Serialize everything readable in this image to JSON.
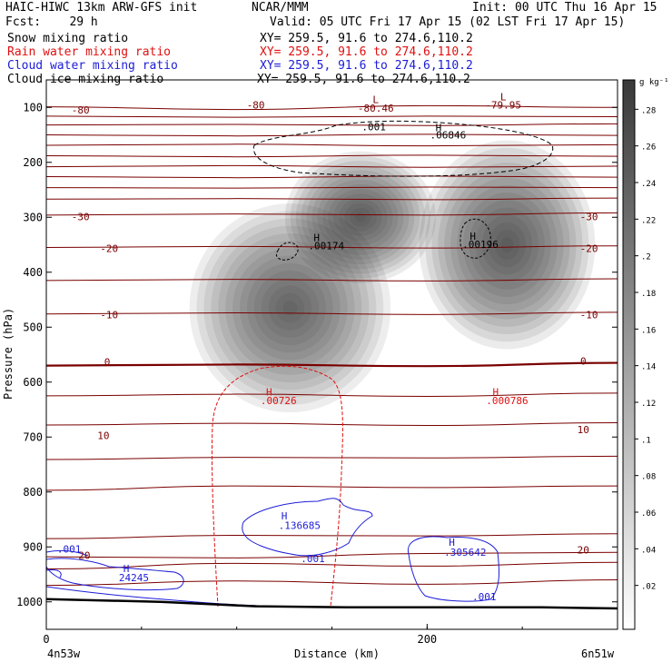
{
  "header": {
    "title_left": "HAIC-HIWC 13km ARW-GFS init",
    "org": "NCAR/MMM",
    "init": "Init: 00 UTC Thu 16 Apr 15",
    "fcst": "Fcst:    29 h",
    "valid": "Valid: 05 UTC Fri 17 Apr 15 (02 LST Fri 17 Apr 15)"
  },
  "fields": [
    {
      "label": "Snow mixing ratio",
      "xy": "XY= 259.5, 91.6 to 274.6,110.2",
      "color": "#000000"
    },
    {
      "label": "Rain water mixing ratio",
      "xy": "XY= 259.5, 91.6 to 274.6,110.2",
      "color": "#e01010"
    },
    {
      "label": "Cloud water mixing ratio",
      "xy": "XY= 259.5, 91.6 to 274.6,110.2",
      "color": "#1c1cd8"
    },
    {
      "label": "Cloud ice mixing ratio",
      "xy": "XY= 259.5, 91.6 to 274.6,110.2",
      "color": "#000000"
    }
  ],
  "chart_data": {
    "type": "heatmap",
    "xlabel": "Distance (km)",
    "ylabel": "Pressure (hPa)",
    "xlim": [
      0,
      300
    ],
    "ylim": [
      1050,
      50
    ],
    "x_ticks": [
      0,
      200
    ],
    "y_ticks": [
      100,
      200,
      300,
      400,
      500,
      600,
      700,
      800,
      900,
      1000
    ],
    "left_endpoint": "4n53w",
    "right_endpoint": "6n51w",
    "colorbar": {
      "unit": "g kg⁻¹",
      "ticks": [
        ".28",
        ".26",
        ".24",
        ".22",
        ".2",
        ".18",
        ".16",
        ".14",
        ".12",
        ".1",
        ".08",
        ".06",
        ".04",
        ".02"
      ]
    },
    "snow_blobs": [
      {
        "x": 128,
        "p": 465,
        "sx": 24,
        "sp": 95,
        "peak": 0.26
      },
      {
        "x": 165,
        "p": 300,
        "sx": 18,
        "sp": 60,
        "peak": 0.28
      },
      {
        "x": 242,
        "p": 350,
        "sx": 21,
        "sp": 95,
        "peak": 0.28
      }
    ],
    "temperature_contours": {
      "color": "#7a0000",
      "labels": [
        "-80",
        "-30",
        "-20",
        "-10",
        "0",
        "10",
        "20"
      ],
      "series": [
        {
          "x": [
            0,
            100,
            200,
            300
          ],
          "p": [
            99,
            104,
            97,
            100
          ]
        },
        {
          "x": [
            0,
            100,
            200,
            300
          ],
          "p": [
            116,
            118,
            116,
            117
          ]
        },
        {
          "x": [
            0,
            100,
            200,
            300
          ],
          "p": [
            132,
            131,
            133,
            130
          ]
        },
        {
          "x": [
            0,
            100,
            200,
            300
          ],
          "p": [
            150,
            152,
            149,
            151
          ]
        },
        {
          "x": [
            0,
            100,
            200,
            300
          ],
          "p": [
            169,
            167,
            170,
            168
          ]
        },
        {
          "x": [
            0,
            100,
            200,
            300
          ],
          "p": [
            188,
            190,
            187,
            189
          ]
        },
        {
          "x": [
            0,
            100,
            200,
            300
          ],
          "p": [
            208,
            206,
            209,
            207
          ]
        },
        {
          "x": [
            0,
            100,
            200,
            300
          ],
          "p": [
            226,
            228,
            225,
            227
          ]
        },
        {
          "x": [
            0,
            100,
            200,
            300
          ],
          "p": [
            246,
            247,
            245,
            246
          ]
        },
        {
          "x": [
            0,
            100,
            200,
            300
          ],
          "p": [
            267,
            266,
            268,
            265
          ]
        },
        {
          "x": [
            0,
            100,
            200,
            300
          ],
          "p": [
            296,
            294,
            296,
            292
          ]
        },
        {
          "x": [
            0,
            100,
            200,
            300
          ],
          "p": [
            355,
            353,
            356,
            352
          ]
        },
        {
          "x": [
            0,
            100,
            200,
            300
          ],
          "p": [
            415,
            413,
            416,
            412
          ]
        },
        {
          "x": [
            0,
            100,
            200,
            300
          ],
          "p": [
            476,
            474,
            477,
            473
          ]
        },
        {
          "x": [
            0,
            100,
            200,
            300
          ],
          "p": [
            570,
            568,
            571,
            565
          ]
        },
        {
          "x": [
            0,
            100,
            200,
            300
          ],
          "p": [
            625,
            622,
            626,
            620
          ]
        },
        {
          "x": [
            0,
            100,
            200,
            300
          ],
          "p": [
            678,
            675,
            679,
            674
          ]
        },
        {
          "x": [
            0,
            100,
            200,
            300
          ],
          "p": [
            741,
            737,
            738,
            735
          ]
        },
        {
          "x": [
            0,
            100,
            200,
            300
          ],
          "p": [
            797,
            789,
            792,
            789
          ]
        },
        {
          "x": [
            0,
            100,
            200,
            300
          ],
          "p": [
            885,
            879,
            880,
            876
          ]
        },
        {
          "x": [
            0,
            100,
            200,
            300
          ],
          "p": [
            918,
            920,
            912,
            910
          ]
        },
        {
          "x": [
            0,
            100,
            200,
            300
          ],
          "p": [
            940,
            930,
            935,
            928
          ]
        },
        {
          "x": [
            0,
            100,
            200,
            300
          ],
          "p": [
            970,
            962,
            968,
            960
          ]
        }
      ]
    },
    "ground": {
      "x": [
        0,
        60,
        110,
        160,
        210,
        260,
        300
      ],
      "p": [
        995,
        1000,
        1008,
        1010,
        1010,
        1010,
        1012
      ]
    },
    "annotations": [
      {
        "text": "L",
        "x": 173,
        "p": 92,
        "color": "#7a0000"
      },
      {
        "text": "-80.46",
        "x": 173,
        "p": 108,
        "color": "#7a0000"
      },
      {
        "text": "L",
        "x": 240,
        "p": 87,
        "color": "#7a0000"
      },
      {
        "text": "-79.95",
        "x": 240,
        "p": 102,
        "color": "#7a0000"
      },
      {
        "text": ".001",
        "x": 172,
        "p": 142,
        "color": "#000000"
      },
      {
        "text": "H",
        "x": 206,
        "p": 143,
        "color": "#000000"
      },
      {
        "text": ".06846",
        "x": 211,
        "p": 157,
        "color": "#000000"
      },
      {
        "text": "H",
        "x": 142,
        "p": 343,
        "color": "#000000"
      },
      {
        "text": ".00174",
        "x": 147,
        "p": 358,
        "color": "#000000"
      },
      {
        "text": "H",
        "x": 224,
        "p": 341,
        "color": "#000000"
      },
      {
        "text": ".00196",
        "x": 228,
        "p": 356,
        "color": "#000000"
      },
      {
        "text": "H",
        "x": 117,
        "p": 624,
        "color": "#e01010"
      },
      {
        "text": ".00726",
        "x": 122,
        "p": 640,
        "color": "#e01010"
      },
      {
        "text": "H",
        "x": 236,
        "p": 624,
        "color": "#e01010"
      },
      {
        "text": ".000786",
        "x": 242,
        "p": 640,
        "color": "#e01010"
      },
      {
        "text": "H",
        "x": 125,
        "p": 850,
        "color": "#1c1cd8"
      },
      {
        "text": ".136685",
        "x": 133,
        "p": 867,
        "color": "#1c1cd8"
      },
      {
        "text": ".001",
        "x": 140,
        "p": 928,
        "color": "#1c1cd8"
      },
      {
        "text": "H",
        "x": 213,
        "p": 898,
        "color": "#1c1cd8"
      },
      {
        "text": ".305642",
        "x": 220,
        "p": 916,
        "color": "#1c1cd8"
      },
      {
        "text": ".001",
        "x": 230,
        "p": 997,
        "color": "#1c1cd8"
      },
      {
        "text": ".001",
        "x": 12,
        "p": 910,
        "color": "#1c1cd8"
      },
      {
        "text": "H",
        "x": 42,
        "p": 946,
        "color": "#1c1cd8"
      },
      {
        "text": "24245",
        "x": 46,
        "p": 962,
        "color": "#1c1cd8"
      },
      {
        "text": "-80",
        "x": 18,
        "p": 111,
        "color": "#7a0000"
      },
      {
        "text": "-80",
        "x": 110,
        "p": 102,
        "color": "#7a0000"
      },
      {
        "text": "-30",
        "x": 18,
        "p": 305,
        "color": "#7a0000"
      },
      {
        "text": "-30",
        "x": 285,
        "p": 305,
        "color": "#7a0000"
      },
      {
        "text": "-20",
        "x": 33,
        "p": 363,
        "color": "#7a0000"
      },
      {
        "text": "-20",
        "x": 285,
        "p": 363,
        "color": "#7a0000"
      },
      {
        "text": "-10",
        "x": 33,
        "p": 484,
        "color": "#7a0000"
      },
      {
        "text": "-10",
        "x": 285,
        "p": 484,
        "color": "#7a0000"
      },
      {
        "text": "0",
        "x": 32,
        "p": 570,
        "color": "#7a0000"
      },
      {
        "text": "0",
        "x": 282,
        "p": 568,
        "color": "#7a0000"
      },
      {
        "text": "10",
        "x": 30,
        "p": 704,
        "color": "#7a0000"
      },
      {
        "text": "10",
        "x": 282,
        "p": 693,
        "color": "#7a0000"
      },
      {
        "text": "20",
        "x": 20,
        "p": 922,
        "color": "#7a0000"
      },
      {
        "text": "20",
        "x": 282,
        "p": 912,
        "color": "#7a0000"
      }
    ]
  }
}
